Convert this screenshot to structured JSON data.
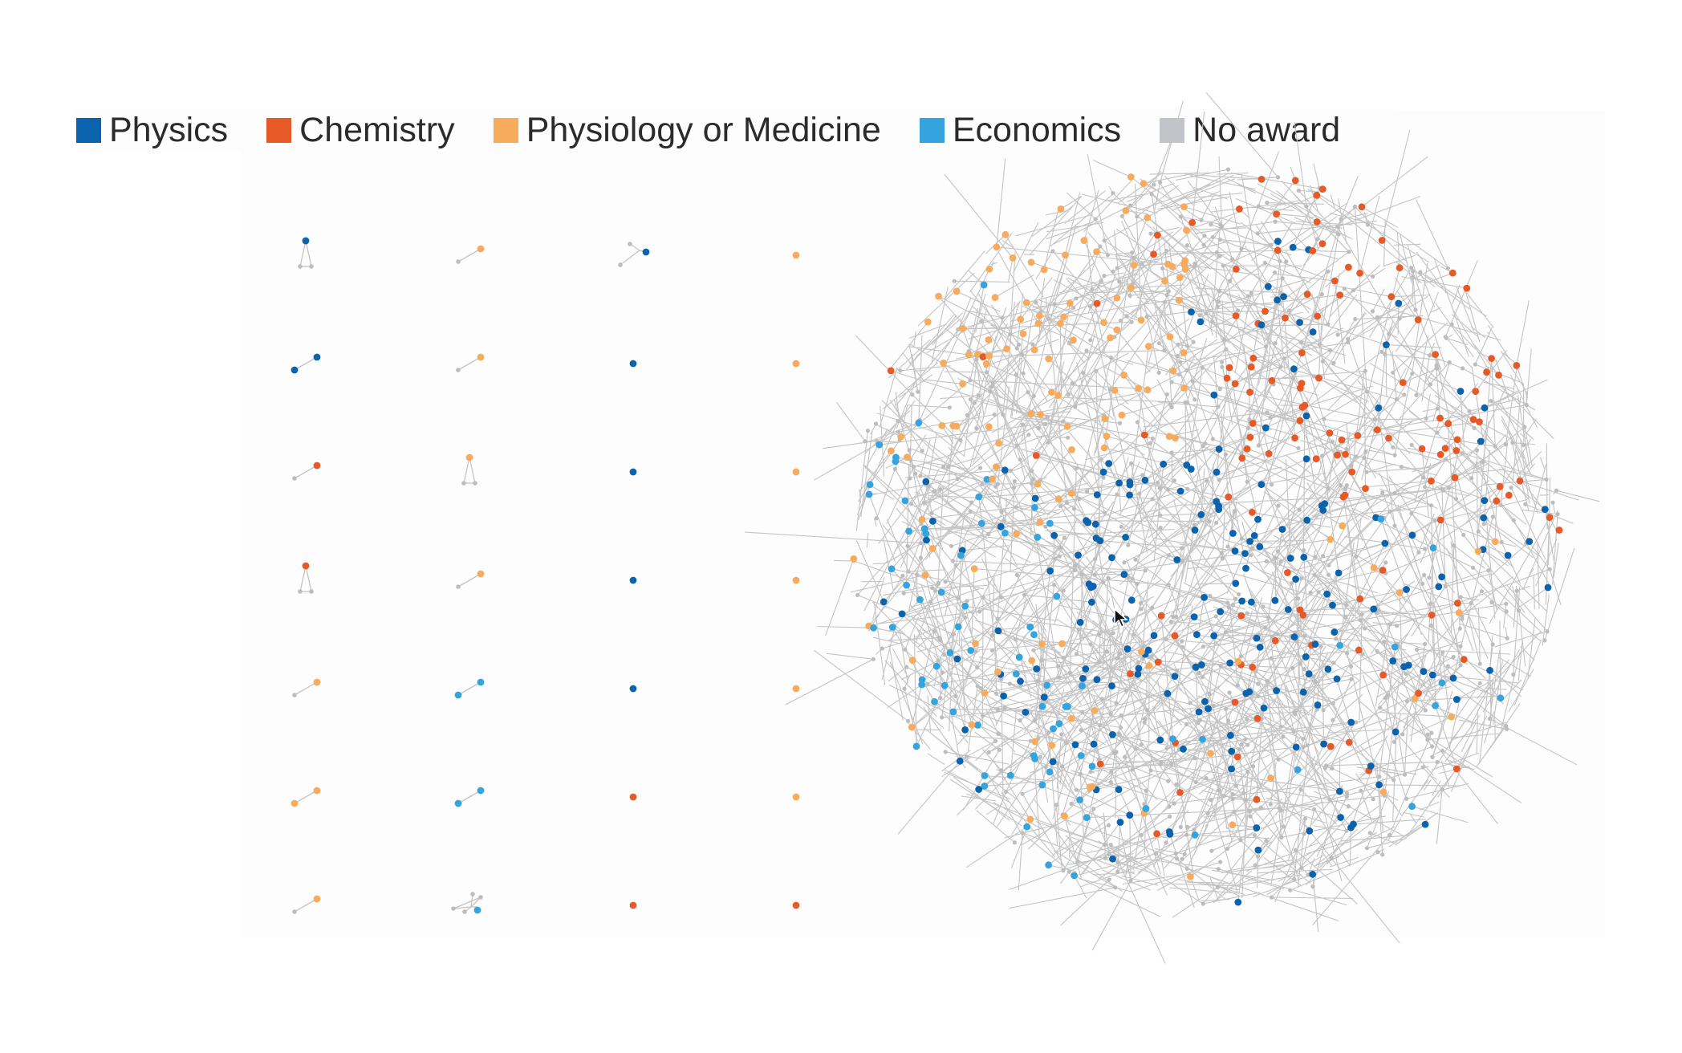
{
  "legend": {
    "items": [
      {
        "label": "Physics",
        "color": "#0b63ae"
      },
      {
        "label": "Chemistry",
        "color": "#e55a27"
      },
      {
        "label": "Physiology or Medicine",
        "color": "#f6ac5c"
      },
      {
        "label": "Economics",
        "color": "#35a4de"
      },
      {
        "label": "No award",
        "color": "#c1c4c9"
      }
    ]
  },
  "colors": {
    "edge": "#c4c4c4",
    "no_award_node": "#bdbdbd",
    "background": "#fdfdfd"
  },
  "small_components": [
    [
      {
        "cat": "physics",
        "shape": "triangle"
      },
      {
        "cat": "physiology",
        "shape": "pair"
      },
      {
        "cat": "physics",
        "shape": "chain3"
      },
      {
        "cat": "physiology",
        "shape": "single"
      }
    ],
    [
      {
        "cat": "physics",
        "shape": "pair2"
      },
      {
        "cat": "physiology",
        "shape": "pair"
      },
      {
        "cat": "physics",
        "shape": "single"
      },
      {
        "cat": "physiology",
        "shape": "single"
      }
    ],
    [
      {
        "cat": "chemistry",
        "shape": "pair"
      },
      {
        "cat": "physiology",
        "shape": "triangle"
      },
      {
        "cat": "physics",
        "shape": "single"
      },
      {
        "cat": "physiology",
        "shape": "single"
      }
    ],
    [
      {
        "cat": "chemistry",
        "shape": "triangle"
      },
      {
        "cat": "physiology",
        "shape": "pair"
      },
      {
        "cat": "physics",
        "shape": "single"
      },
      {
        "cat": "physiology",
        "shape": "single"
      }
    ],
    [
      {
        "cat": "physiology",
        "shape": "pair"
      },
      {
        "cat": "economics",
        "shape": "pair2"
      },
      {
        "cat": "physics",
        "shape": "single"
      },
      {
        "cat": "physiology",
        "shape": "single"
      }
    ],
    [
      {
        "cat": "physiology",
        "shape": "pair2"
      },
      {
        "cat": "economics",
        "shape": "pair2"
      },
      {
        "cat": "chemistry",
        "shape": "single"
      },
      {
        "cat": "physiology",
        "shape": "single"
      }
    ],
    [
      {
        "cat": "physiology",
        "shape": "pair"
      },
      {
        "cat": "economics",
        "shape": "star"
      },
      {
        "cat": "chemistry",
        "shape": "single"
      },
      {
        "cat": "chemistry",
        "shape": "single"
      }
    ]
  ],
  "cursor": "arrow-cursor"
}
